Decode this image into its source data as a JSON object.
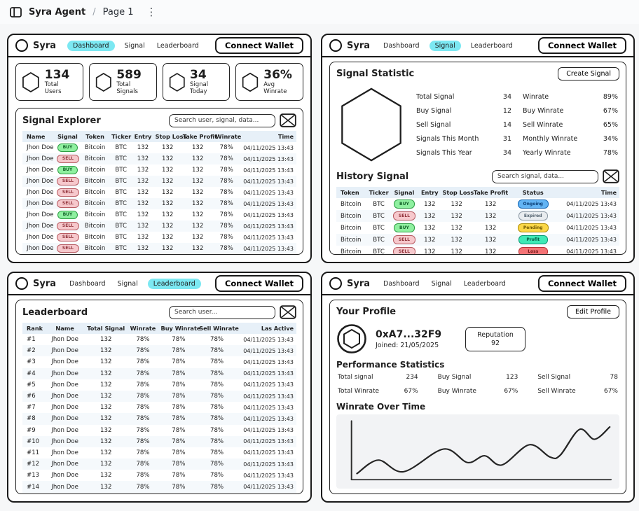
{
  "app_bar": {
    "title": "Syra Agent",
    "separator": "/",
    "page": "Page 1"
  },
  "shared": {
    "brand": "Syra",
    "nav_items": [
      "Dashboard",
      "Signal",
      "Leaderboard"
    ],
    "wallet_button": "Connect Wallet"
  },
  "colors": {
    "nav_active_highlight": "#7ce8f2",
    "table_header_bg": "#e7f0f8",
    "buy_badge": "#8ff0a0",
    "sell_badge": "#f6c8cc",
    "status_ongoing": "#63b4f4",
    "status_expired": "#e8ecef",
    "status_pending": "#fbd747",
    "status_profit": "#3fe9b6",
    "status_loss": "#f47376"
  },
  "panels": {
    "dashboard": {
      "stats": [
        {
          "value": "134",
          "label": "Total Users"
        },
        {
          "value": "589",
          "label": "Total Signals"
        },
        {
          "value": "34",
          "label": "Signal Today"
        },
        {
          "value": "36%",
          "label": "Avg Winrate"
        }
      ],
      "explorer": {
        "title": "Signal Explorer",
        "search_placeholder": "Search user, signal, data...",
        "columns": [
          "Name",
          "Signal",
          "Token",
          "Ticker",
          "Entry",
          "Stop Loss",
          "Take Profit",
          "Winrate",
          "Time"
        ],
        "rows": [
          [
            "Jhon Doe",
            "BUY",
            "Bitcoin",
            "BTC",
            "132",
            "132",
            "132",
            "78%",
            "04/11/2025 13:43"
          ],
          [
            "Jhon Doe",
            "SELL",
            "Bitcoin",
            "BTC",
            "132",
            "132",
            "132",
            "78%",
            "04/11/2025 13:43"
          ],
          [
            "Jhon Doe",
            "BUY",
            "Bitcoin",
            "BTC",
            "132",
            "132",
            "132",
            "78%",
            "04/11/2025 13:43"
          ],
          [
            "Jhon Doe",
            "SELL",
            "Bitcoin",
            "BTC",
            "132",
            "132",
            "132",
            "78%",
            "04/11/2025 13:43"
          ],
          [
            "Jhon Doe",
            "SELL",
            "Bitcoin",
            "BTC",
            "132",
            "132",
            "132",
            "78%",
            "04/11/2025 13:43"
          ],
          [
            "Jhon Doe",
            "SELL",
            "Bitcoin",
            "BTC",
            "132",
            "132",
            "132",
            "78%",
            "04/11/2025 13:43"
          ],
          [
            "Jhon Doe",
            "BUY",
            "Bitcoin",
            "BTC",
            "132",
            "132",
            "132",
            "78%",
            "04/11/2025 13:43"
          ],
          [
            "Jhon Doe",
            "SELL",
            "Bitcoin",
            "BTC",
            "132",
            "132",
            "132",
            "78%",
            "04/11/2025 13:43"
          ],
          [
            "Jhon Doe",
            "SELL",
            "Bitcoin",
            "BTC",
            "132",
            "132",
            "132",
            "78%",
            "04/11/2025 13:43"
          ],
          [
            "Jhon Doe",
            "SELL",
            "Bitcoin",
            "BTC",
            "132",
            "132",
            "132",
            "78%",
            "04/11/2025 13:43"
          ]
        ]
      }
    },
    "signal": {
      "statistic": {
        "title": "Signal Statistic",
        "create_button": "Create Signal",
        "stats_left": [
          [
            "Total Signal",
            "34"
          ],
          [
            "Buy Signal",
            "12"
          ],
          [
            "Sell Signal",
            "14"
          ],
          [
            "Signals This Month",
            "31"
          ],
          [
            "Signals This Year",
            "34"
          ]
        ],
        "stats_right": [
          [
            "Winrate",
            "89%"
          ],
          [
            "Buy Winrate",
            "67%"
          ],
          [
            "Sell Winrate",
            "65%"
          ],
          [
            "Monthly Winrate",
            "34%"
          ],
          [
            "Yearly Winrate",
            "78%"
          ]
        ]
      },
      "history": {
        "title": "History Signal",
        "search_placeholder": "Search signal, data...",
        "columns": [
          "Token",
          "Ticker",
          "Signal",
          "Entry",
          "Stop Loss",
          "Take Profit",
          "Status",
          "Time"
        ],
        "rows": [
          [
            "Bitcoin",
            "BTC",
            "BUY",
            "132",
            "132",
            "132",
            "Ongoing",
            "04/11/2025 13:43"
          ],
          [
            "Bitcoin",
            "BTC",
            "SELL",
            "132",
            "132",
            "132",
            "Expired",
            "04/11/2025 13:43"
          ],
          [
            "Bitcoin",
            "BTC",
            "BUY",
            "132",
            "132",
            "132",
            "Pending",
            "04/11/2025 13:43"
          ],
          [
            "Bitcoin",
            "BTC",
            "SELL",
            "132",
            "132",
            "132",
            "Profit",
            "04/11/2025 13:43"
          ],
          [
            "Bitcoin",
            "BTC",
            "SELL",
            "132",
            "132",
            "132",
            "Loss",
            "04/11/2025 13:43"
          ]
        ]
      }
    },
    "leaderboard": {
      "board": {
        "title": "Leaderboard",
        "search_placeholder": "Search user...",
        "columns": [
          "Rank",
          "Name",
          "Total Signal",
          "Winrate",
          "Buy Winrate",
          "Sell Winrate",
          "Las Active"
        ],
        "rows": [
          [
            "#1",
            "Jhon Doe",
            "132",
            "78%",
            "78%",
            "78%",
            "04/11/2025 13:43"
          ],
          [
            "#2",
            "Jhon Doe",
            "132",
            "78%",
            "78%",
            "78%",
            "04/11/2025 13:43"
          ],
          [
            "#3",
            "Jhon Doe",
            "132",
            "78%",
            "78%",
            "78%",
            "04/11/2025 13:43"
          ],
          [
            "#4",
            "Jhon Doe",
            "132",
            "78%",
            "78%",
            "78%",
            "04/11/2025 13:43"
          ],
          [
            "#5",
            "Jhon Doe",
            "132",
            "78%",
            "78%",
            "78%",
            "04/11/2025 13:43"
          ],
          [
            "#6",
            "Jhon Doe",
            "132",
            "78%",
            "78%",
            "78%",
            "04/11/2025 13:43"
          ],
          [
            "#7",
            "Jhon Doe",
            "132",
            "78%",
            "78%",
            "78%",
            "04/11/2025 13:43"
          ],
          [
            "#8",
            "Jhon Doe",
            "132",
            "78%",
            "78%",
            "78%",
            "04/11/2025 13:43"
          ],
          [
            "#9",
            "Jhon Doe",
            "132",
            "78%",
            "78%",
            "78%",
            "04/11/2025 13:43"
          ],
          [
            "#10",
            "Jhon Doe",
            "132",
            "78%",
            "78%",
            "78%",
            "04/11/2025 13:43"
          ],
          [
            "#11",
            "Jhon Doe",
            "132",
            "78%",
            "78%",
            "78%",
            "04/11/2025 13:43"
          ],
          [
            "#12",
            "Jhon Doe",
            "132",
            "78%",
            "78%",
            "78%",
            "04/11/2025 13:43"
          ],
          [
            "#13",
            "Jhon Doe",
            "132",
            "78%",
            "78%",
            "78%",
            "04/11/2025 13:43"
          ],
          [
            "#14",
            "Jhon Doe",
            "132",
            "78%",
            "78%",
            "78%",
            "04/11/2025 13:43"
          ]
        ]
      }
    },
    "profile": {
      "title": "Your Profile",
      "edit_button": "Edit Profile",
      "address": "0xA7...32F9",
      "joined": "Joined: 21/05/2025",
      "reputation_label": "Reputation",
      "reputation_value": "92",
      "performance": {
        "title": "Performance Statistics",
        "stats": [
          [
            "Total signal",
            "234"
          ],
          [
            "Buy Signal",
            "123"
          ],
          [
            "Sell Signal",
            "78"
          ],
          [
            "Total Winrate",
            "67%"
          ],
          [
            "Buy Winrate",
            "67%"
          ],
          [
            "Sell Winrate",
            "67%"
          ]
        ]
      },
      "chart": {
        "title": "Winrate Over Time",
        "type": "line",
        "points": [
          [
            24,
            92
          ],
          [
            55,
            70
          ],
          [
            92,
            89
          ],
          [
            150,
            52
          ],
          [
            185,
            74
          ],
          [
            210,
            63
          ],
          [
            235,
            78
          ],
          [
            275,
            45
          ],
          [
            305,
            65
          ],
          [
            320,
            62
          ],
          [
            348,
            20
          ],
          [
            370,
            36
          ],
          [
            392,
            16
          ]
        ]
      }
    }
  }
}
